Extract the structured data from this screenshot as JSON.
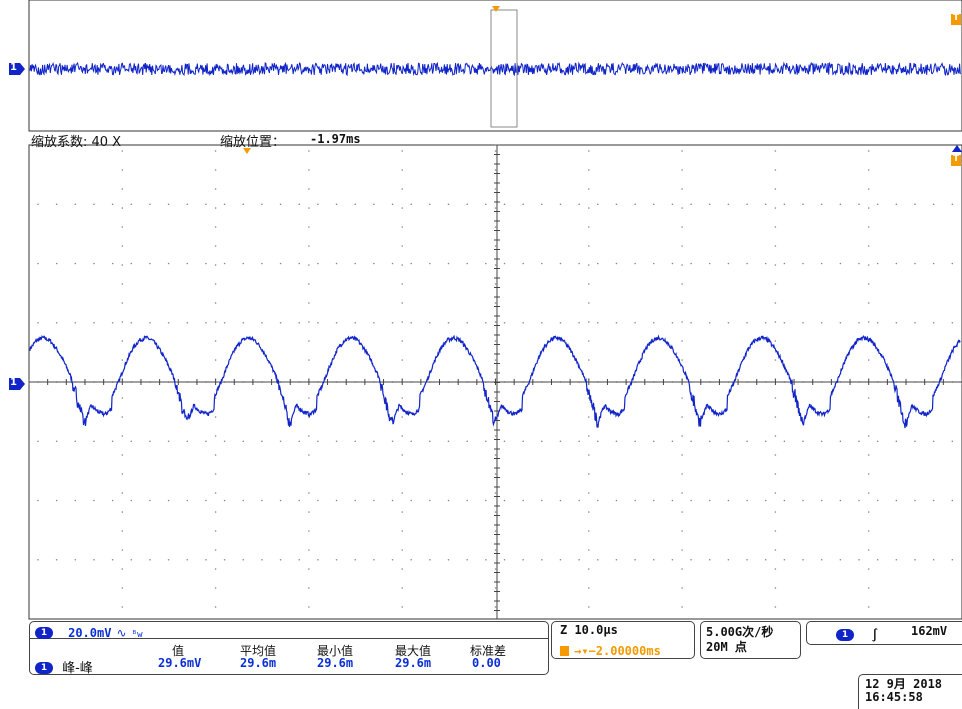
{
  "zoom": {
    "factor_label": "缩放系数: 40 X",
    "position_label": "缩放位置：",
    "position_value": "-1.97ms"
  },
  "channel": {
    "id": "1",
    "scale": "20.0mV",
    "coupling_symbol": "∿",
    "bandwidth_symbol": "ᴮw",
    "color": "#1024c8"
  },
  "measurement": {
    "name": "峰-峰",
    "columns": [
      "值",
      "平均值",
      "最小值",
      "最大值",
      "标准差"
    ],
    "values": [
      "29.6mV",
      "29.6m",
      "29.6m",
      "29.6m",
      "0.00"
    ]
  },
  "timebase": {
    "scale": "Z 10.0μs",
    "delay": "→▾−2.00000ms",
    "sample_rate": "5.00G次/秒",
    "record_length": "20M 点"
  },
  "trigger": {
    "source": "1",
    "slope_symbol": "∫",
    "level": "162mV"
  },
  "datetime": {
    "date": "12 9月  2018",
    "time": "16:45:58"
  },
  "markers": {
    "channel_marker": "1",
    "trigger_marker": "T"
  },
  "colors": {
    "trace": "#1024c8",
    "trigger": "#f59a00",
    "grid": "#888888",
    "frame": "#333333"
  },
  "chart_data": {
    "type": "line",
    "description_series": "Channel 1 zoomed waveform: periodic ripple",
    "x_unit": "μs",
    "y_unit": "mV",
    "xlim": [
      -50,
      50
    ],
    "ylim": [
      -80,
      80
    ],
    "grid": true,
    "period_divisions": 1.1,
    "peak_to_peak": 29.6,
    "series": [
      {
        "values": [
          -5,
          0,
          6,
          11,
          14,
          15,
          14,
          11,
          7,
          2,
          -6,
          -14,
          -8,
          -10,
          -11,
          -9
        ]
      }
    ]
  }
}
